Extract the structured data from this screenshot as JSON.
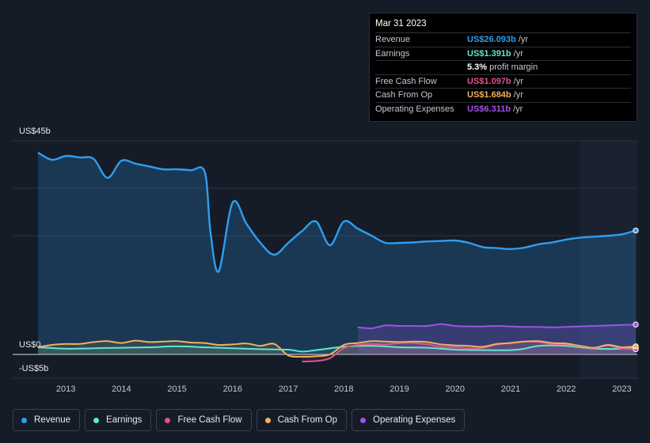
{
  "tooltip": {
    "date": "Mar 31 2023",
    "rows": [
      {
        "label": "Revenue",
        "value": "US$26.093b",
        "unit": "/yr",
        "color": "#2e9ef0"
      },
      {
        "label": "Earnings",
        "value": "US$1.391b",
        "unit": "/yr",
        "color": "#5ee8cf"
      },
      {
        "label": "",
        "value": "5.3%",
        "unit": "profit margin",
        "color": "#ffffff"
      },
      {
        "label": "Free Cash Flow",
        "value": "US$1.097b",
        "unit": "/yr",
        "color": "#e0528a"
      },
      {
        "label": "Cash From Op",
        "value": "US$1.684b",
        "unit": "/yr",
        "color": "#f0b060"
      },
      {
        "label": "Operating Expenses",
        "value": "US$6.311b",
        "unit": "/yr",
        "color": "#a150e8"
      }
    ]
  },
  "legend": [
    {
      "label": "Revenue",
      "color": "#2e9ef0"
    },
    {
      "label": "Earnings",
      "color": "#5ee8cf"
    },
    {
      "label": "Free Cash Flow",
      "color": "#e0528a"
    },
    {
      "label": "Cash From Op",
      "color": "#f0b060"
    },
    {
      "label": "Operating Expenses",
      "color": "#a150e8"
    }
  ],
  "chart_data": {
    "type": "line",
    "title": "",
    "ylabel_top": "US$45b",
    "ylabel_zero": "US$0",
    "ylabel_bottom": "-US$5b",
    "ylim": [
      -5,
      45
    ],
    "xlim": [
      2012.5,
      2023.25
    ],
    "x_ticks": [
      "2013",
      "2014",
      "2015",
      "2016",
      "2017",
      "2018",
      "2019",
      "2020",
      "2021",
      "2022",
      "2023"
    ],
    "x_tick_values": [
      2013,
      2014,
      2015,
      2016,
      2017,
      2018,
      2019,
      2020,
      2021,
      2022,
      2023
    ],
    "highlight_start": 2022.25,
    "series": [
      {
        "name": "Revenue",
        "color": "#2e9ef0",
        "x": [
          2012.5,
          2012.75,
          2013.0,
          2013.25,
          2013.5,
          2013.75,
          2014.0,
          2014.25,
          2014.5,
          2014.75,
          2015.0,
          2015.25,
          2015.5,
          2015.6,
          2015.75,
          2016.0,
          2016.25,
          2016.5,
          2016.75,
          2017.0,
          2017.25,
          2017.5,
          2017.75,
          2018.0,
          2018.25,
          2018.5,
          2018.75,
          2019.0,
          2019.25,
          2019.5,
          2019.75,
          2020.0,
          2020.25,
          2020.5,
          2020.75,
          2021.0,
          2021.25,
          2021.5,
          2021.75,
          2022.0,
          2022.25,
          2022.5,
          2022.75,
          2023.0,
          2023.25
        ],
        "values": [
          42.5,
          41.0,
          41.8,
          41.5,
          41.2,
          37.2,
          40.8,
          40.2,
          39.6,
          39.0,
          39.0,
          38.8,
          38.4,
          26.0,
          17.5,
          32.0,
          27.5,
          23.5,
          21.0,
          23.5,
          26.0,
          28.0,
          23.0,
          28.0,
          26.5,
          25.0,
          23.5,
          23.5,
          23.6,
          23.8,
          23.9,
          24.0,
          23.5,
          22.6,
          22.4,
          22.2,
          22.5,
          23.2,
          23.6,
          24.2,
          24.6,
          24.8,
          25.0,
          25.3,
          26.1
        ]
      },
      {
        "name": "Earnings",
        "color": "#5ee8cf",
        "x": [
          2012.5,
          2013.0,
          2013.5,
          2014.0,
          2014.5,
          2015.0,
          2015.5,
          2016.0,
          2016.5,
          2017.0,
          2017.25,
          2017.5,
          2018.0,
          2018.5,
          2019.0,
          2019.5,
          2020.0,
          2020.5,
          2021.0,
          2021.25,
          2021.5,
          2022.0,
          2022.5,
          2023.0,
          2023.25
        ],
        "values": [
          1.5,
          1.2,
          1.3,
          1.4,
          1.5,
          1.7,
          1.5,
          1.3,
          1.1,
          1.0,
          0.6,
          0.9,
          1.6,
          1.8,
          1.5,
          1.4,
          1.0,
          0.9,
          0.9,
          1.2,
          1.8,
          1.8,
          1.2,
          1.2,
          1.4
        ]
      },
      {
        "name": "Free Cash Flow",
        "color": "#e0528a",
        "x": [
          2017.25,
          2017.5,
          2017.75,
          2018.0,
          2018.25,
          2018.5,
          2018.75,
          2019.0,
          2019.25,
          2019.5,
          2019.75,
          2020.0,
          2020.25,
          2020.5,
          2020.75,
          2021.0,
          2021.25,
          2021.5,
          2021.75,
          2022.0,
          2022.25,
          2022.5,
          2022.75,
          2023.0,
          2023.25
        ],
        "values": [
          -1.5,
          -1.4,
          -0.8,
          1.3,
          2.0,
          2.2,
          2.1,
          2.4,
          2.4,
          2.1,
          1.6,
          1.5,
          1.3,
          1.4,
          2.1,
          2.4,
          2.7,
          2.6,
          2.2,
          2.1,
          1.7,
          1.3,
          1.9,
          1.2,
          1.1
        ]
      },
      {
        "name": "Cash From Op",
        "color": "#f0b060",
        "x": [
          2012.5,
          2012.75,
          2013.0,
          2013.25,
          2013.5,
          2013.75,
          2014.0,
          2014.25,
          2014.5,
          2014.75,
          2015.0,
          2015.25,
          2015.5,
          2015.75,
          2016.0,
          2016.25,
          2016.5,
          2016.75,
          2017.0,
          2017.25,
          2017.5,
          2017.75,
          2018.0,
          2018.25,
          2018.5,
          2018.75,
          2019.0,
          2019.25,
          2019.5,
          2019.75,
          2020.0,
          2020.25,
          2020.5,
          2020.75,
          2021.0,
          2021.25,
          2021.5,
          2021.75,
          2022.0,
          2022.25,
          2022.5,
          2022.75,
          2023.0,
          2023.25
        ],
        "values": [
          1.5,
          2.0,
          2.2,
          2.2,
          2.6,
          2.8,
          2.4,
          2.9,
          2.6,
          2.7,
          2.8,
          2.5,
          2.4,
          2.0,
          2.1,
          2.3,
          1.8,
          2.2,
          -0.2,
          -0.5,
          -0.4,
          0.0,
          2.0,
          2.4,
          2.8,
          2.7,
          2.6,
          2.7,
          2.6,
          2.1,
          1.9,
          1.8,
          1.6,
          2.2,
          2.4,
          2.7,
          2.8,
          2.4,
          2.3,
          1.8,
          1.4,
          2.0,
          1.5,
          1.7
        ]
      },
      {
        "name": "Operating Expenses",
        "color": "#a150e8",
        "x": [
          2018.25,
          2018.5,
          2018.75,
          2019.0,
          2019.25,
          2019.5,
          2019.75,
          2020.0,
          2020.25,
          2020.5,
          2020.75,
          2021.0,
          2021.25,
          2021.5,
          2021.75,
          2022.0,
          2022.25,
          2022.5,
          2022.75,
          2023.0,
          2023.25
        ],
        "values": [
          5.7,
          5.5,
          6.1,
          6.0,
          6.0,
          6.0,
          6.4,
          6.0,
          5.9,
          5.9,
          6.0,
          5.9,
          5.8,
          5.8,
          5.7,
          5.8,
          5.9,
          6.0,
          6.1,
          6.2,
          6.3
        ]
      }
    ]
  }
}
